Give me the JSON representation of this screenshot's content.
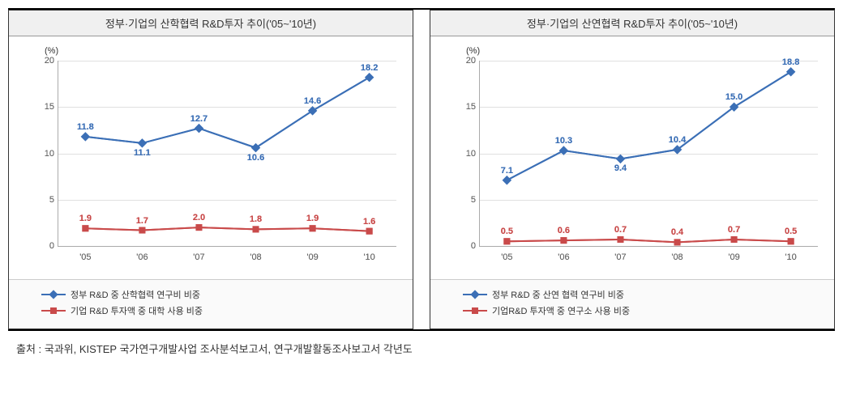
{
  "source_text": "출처 : 국과위, KISTEP 국가연구개발사업 조사분석보고서, 연구개발활동조사보고서 각년도",
  "y_axis_label": "(%)",
  "xlabels": [
    "'05",
    "'06",
    "'07",
    "'08",
    "'09",
    "'10"
  ],
  "ylim": [
    0,
    20
  ],
  "ytick_step": 5,
  "grid_color": "#e0e0e0",
  "axis_color": "#aaaaaa",
  "blue": "#3b6fb6",
  "red": "#c94a4a",
  "label_fontsize": 11,
  "left": {
    "title": "정부·기업의 산학협력 R&D투자 추이('05~'10년)",
    "series_blue": {
      "values": [
        11.8,
        11.1,
        12.7,
        10.6,
        14.6,
        18.2
      ],
      "labels": [
        "11.8",
        "11.1",
        "12.7",
        "10.6",
        "14.6",
        "18.2"
      ],
      "label_pos": [
        "above",
        "below",
        "above",
        "below",
        "above",
        "above"
      ],
      "color": "#3b6fb6",
      "marker": "diamond",
      "legend": "정부 R&D 중 산학협력 연구비 비중"
    },
    "series_red": {
      "values": [
        1.9,
        1.7,
        2.0,
        1.8,
        1.9,
        1.6
      ],
      "labels": [
        "1.9",
        "1.7",
        "2.0",
        "1.8",
        "1.9",
        "1.6"
      ],
      "label_pos": [
        "above",
        "above",
        "above",
        "above",
        "above",
        "above"
      ],
      "color": "#c94a4a",
      "marker": "square",
      "legend": "기업 R&D 투자액 중 대학 사용 비중"
    }
  },
  "right": {
    "title": "정부·기업의 산연협력 R&D투자 추이('05~'10년)",
    "series_blue": {
      "values": [
        7.1,
        10.3,
        9.4,
        10.4,
        15.0,
        18.8
      ],
      "labels": [
        "7.1",
        "10.3",
        "9.4",
        "10.4",
        "15.0",
        "18.8"
      ],
      "label_pos": [
        "above",
        "above",
        "below",
        "above",
        "above",
        "above"
      ],
      "color": "#3b6fb6",
      "marker": "diamond",
      "legend": "정부 R&D 중 산연 협력 연구비 비중"
    },
    "series_red": {
      "values": [
        0.5,
        0.6,
        0.7,
        0.4,
        0.7,
        0.5
      ],
      "labels": [
        "0.5",
        "0.6",
        "0.7",
        "0.4",
        "0.7",
        "0.5"
      ],
      "label_pos": [
        "above",
        "above",
        "above",
        "above",
        "above",
        "above"
      ],
      "color": "#c94a4a",
      "marker": "square",
      "legend": "기업R&D 투자액 중 연구소 사용 비중"
    }
  }
}
